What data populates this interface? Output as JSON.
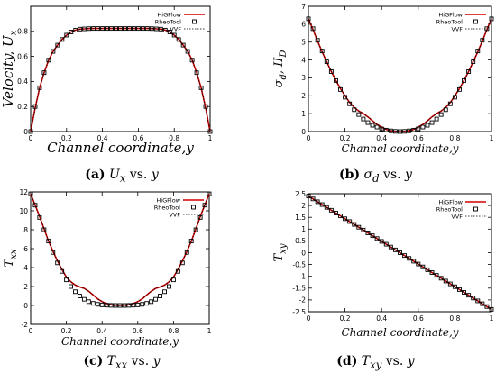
{
  "legend_entries": [
    "HiGFlow",
    "RheoTool",
    "VVF"
  ],
  "colors": {
    "higflow": "#d40000",
    "rheotool_marker": "#000000",
    "vvf": "#000000",
    "axis": "#000000"
  },
  "chart_data": [
    {
      "id": "a",
      "type": "line",
      "caption": {
        "letter": "(a)",
        "math": "U",
        "sub": "x",
        "suffix": " vs. ",
        "var": "y"
      },
      "xlabel": "Channel coordinate,y",
      "ylabel_main": "Velocity, U",
      "ylabel_sub": "x",
      "xlim": [
        0,
        1
      ],
      "ylim": [
        0,
        1.0
      ],
      "xticks": [
        0,
        0.2,
        0.4,
        0.6,
        0.8,
        1
      ],
      "xtick_labels": [
        "0",
        "0.2",
        "0.4",
        "0.6",
        "0.8",
        "1"
      ],
      "yticks": [
        0,
        0.2,
        0.4,
        0.6,
        0.8
      ],
      "ytick_labels": [
        "0",
        "0.2",
        "0.4",
        "0.6",
        "0.8"
      ],
      "legend_position": "top-right",
      "series": [
        {
          "name": "HiGFlow",
          "style": "line",
          "x": [
            0,
            0.025,
            0.05,
            0.075,
            0.1,
            0.125,
            0.15,
            0.175,
            0.2,
            0.225,
            0.25,
            0.275,
            0.3,
            0.325,
            0.35,
            0.4,
            0.5,
            0.6,
            0.65,
            0.675,
            0.7,
            0.725,
            0.75,
            0.775,
            0.8,
            0.825,
            0.85,
            0.875,
            0.9,
            0.925,
            0.95,
            0.975,
            1
          ],
          "y": [
            0,
            0.19,
            0.35,
            0.47,
            0.57,
            0.64,
            0.69,
            0.735,
            0.77,
            0.795,
            0.81,
            0.818,
            0.82,
            0.822,
            0.823,
            0.823,
            0.823,
            0.823,
            0.823,
            0.822,
            0.82,
            0.818,
            0.81,
            0.795,
            0.77,
            0.735,
            0.69,
            0.64,
            0.57,
            0.47,
            0.35,
            0.19,
            0
          ]
        },
        {
          "name": "RheoTool",
          "style": "markers",
          "x": [
            0,
            0.025,
            0.05,
            0.075,
            0.1,
            0.125,
            0.15,
            0.175,
            0.2,
            0.225,
            0.25,
            0.275,
            0.3,
            0.325,
            0.35,
            0.375,
            0.4,
            0.425,
            0.45,
            0.475,
            0.5,
            0.525,
            0.55,
            0.575,
            0.6,
            0.625,
            0.65,
            0.675,
            0.7,
            0.725,
            0.75,
            0.775,
            0.8,
            0.825,
            0.85,
            0.875,
            0.9,
            0.925,
            0.95,
            0.975,
            1
          ],
          "y": [
            0,
            0.2,
            0.35,
            0.47,
            0.57,
            0.64,
            0.69,
            0.735,
            0.77,
            0.795,
            0.81,
            0.818,
            0.82,
            0.822,
            0.823,
            0.823,
            0.823,
            0.823,
            0.823,
            0.823,
            0.823,
            0.823,
            0.823,
            0.823,
            0.823,
            0.823,
            0.823,
            0.822,
            0.82,
            0.818,
            0.81,
            0.795,
            0.77,
            0.735,
            0.69,
            0.64,
            0.57,
            0.47,
            0.35,
            0.2,
            0
          ]
        },
        {
          "name": "VVF",
          "style": "dotted",
          "x": [
            0,
            0.025,
            0.05,
            0.075,
            0.1,
            0.125,
            0.15,
            0.175,
            0.2,
            0.225,
            0.25,
            0.275,
            0.3,
            0.325,
            0.35,
            0.4,
            0.5,
            0.6,
            0.65,
            0.675,
            0.7,
            0.725,
            0.75,
            0.775,
            0.8,
            0.825,
            0.85,
            0.875,
            0.9,
            0.925,
            0.95,
            0.975,
            1
          ],
          "y": [
            0,
            0.19,
            0.35,
            0.47,
            0.57,
            0.64,
            0.69,
            0.735,
            0.77,
            0.795,
            0.81,
            0.818,
            0.82,
            0.822,
            0.823,
            0.823,
            0.823,
            0.823,
            0.823,
            0.822,
            0.82,
            0.818,
            0.81,
            0.795,
            0.77,
            0.735,
            0.69,
            0.64,
            0.57,
            0.47,
            0.35,
            0.19,
            0
          ]
        }
      ]
    },
    {
      "id": "b",
      "type": "line",
      "caption": {
        "letter": "(b)",
        "math": "σ",
        "sub": "d",
        "suffix": " vs. ",
        "var": "y"
      },
      "xlabel": "Channel coordinate,y",
      "ylabel_main": "σ",
      "ylabel_sub": "d",
      "ylabel_rest": ", II",
      "ylabel_rest_sub": "D",
      "xlim": [
        0,
        1
      ],
      "ylim": [
        0,
        7
      ],
      "xticks": [
        0,
        0.2,
        0.4,
        0.6,
        0.8,
        1
      ],
      "xtick_labels": [
        "0",
        "0.2",
        "0.4",
        "0.6",
        "0.8",
        "1"
      ],
      "yticks": [
        0,
        1,
        2,
        3,
        4,
        5,
        6,
        7
      ],
      "ytick_labels": [
        "0",
        "1",
        "2",
        "3",
        "4",
        "5",
        "6",
        "7"
      ],
      "legend_position": "top-right",
      "series": [
        {
          "name": "HiGFlow",
          "style": "line",
          "x": [
            0,
            0.025,
            0.05,
            0.075,
            0.1,
            0.125,
            0.15,
            0.175,
            0.2,
            0.225,
            0.25,
            0.275,
            0.3,
            0.325,
            0.35,
            0.375,
            0.4,
            0.425,
            0.45,
            0.475,
            0.5,
            0.525,
            0.55,
            0.575,
            0.6,
            0.625,
            0.65,
            0.675,
            0.7,
            0.725,
            0.75,
            0.775,
            0.8,
            0.825,
            0.85,
            0.875,
            0.9,
            0.925,
            0.95,
            0.975,
            1
          ],
          "y": [
            6.3,
            5.7,
            5.05,
            4.45,
            3.9,
            3.35,
            2.85,
            2.4,
            2.0,
            1.62,
            1.35,
            1.15,
            1.0,
            0.82,
            0.6,
            0.4,
            0.25,
            0.12,
            0.05,
            0.01,
            0.0,
            0.01,
            0.05,
            0.12,
            0.25,
            0.4,
            0.6,
            0.82,
            1.0,
            1.15,
            1.35,
            1.62,
            2.0,
            2.4,
            2.85,
            3.35,
            3.9,
            4.45,
            5.05,
            5.7,
            6.3
          ]
        },
        {
          "name": "RheoTool",
          "style": "markers",
          "x": [
            0,
            0.025,
            0.05,
            0.075,
            0.1,
            0.125,
            0.15,
            0.175,
            0.2,
            0.225,
            0.25,
            0.275,
            0.3,
            0.325,
            0.35,
            0.375,
            0.4,
            0.425,
            0.45,
            0.475,
            0.5,
            0.525,
            0.55,
            0.575,
            0.6,
            0.625,
            0.65,
            0.675,
            0.7,
            0.725,
            0.75,
            0.775,
            0.8,
            0.825,
            0.85,
            0.875,
            0.9,
            0.925,
            0.95,
            0.975,
            1
          ],
          "y": [
            6.3,
            5.75,
            5.1,
            4.5,
            3.9,
            3.35,
            2.85,
            2.35,
            1.92,
            1.55,
            1.22,
            0.95,
            0.7,
            0.5,
            0.35,
            0.25,
            0.15,
            0.08,
            0.04,
            0.01,
            0.0,
            0.01,
            0.04,
            0.08,
            0.15,
            0.25,
            0.35,
            0.5,
            0.7,
            0.95,
            1.22,
            1.55,
            1.92,
            2.35,
            2.85,
            3.35,
            3.9,
            4.5,
            5.1,
            5.75,
            6.3
          ]
        },
        {
          "name": "VVF",
          "style": "dotted",
          "x": [
            0,
            0.025,
            0.05,
            0.075,
            0.1,
            0.125,
            0.15,
            0.175,
            0.2,
            0.225,
            0.25,
            0.275,
            0.3,
            0.325,
            0.35,
            0.375,
            0.4,
            0.425,
            0.45,
            0.475,
            0.5,
            0.525,
            0.55,
            0.575,
            0.6,
            0.625,
            0.65,
            0.675,
            0.7,
            0.725,
            0.75,
            0.775,
            0.8,
            0.825,
            0.85,
            0.875,
            0.9,
            0.925,
            0.95,
            0.975,
            1
          ],
          "y": [
            6.3,
            5.7,
            5.05,
            4.45,
            3.9,
            3.35,
            2.85,
            2.4,
            2.0,
            1.62,
            1.35,
            1.15,
            1.0,
            0.82,
            0.6,
            0.4,
            0.25,
            0.12,
            0.05,
            0.01,
            0.0,
            0.01,
            0.05,
            0.12,
            0.25,
            0.4,
            0.6,
            0.82,
            1.0,
            1.15,
            1.35,
            1.62,
            2.0,
            2.4,
            2.85,
            3.35,
            3.9,
            4.45,
            5.05,
            5.7,
            6.3
          ]
        }
      ]
    },
    {
      "id": "c",
      "type": "line",
      "caption": {
        "letter": "(c)",
        "math": "T",
        "sub": "xx",
        "suffix": " vs. ",
        "var": "y"
      },
      "xlabel": "Channel coordinate,y",
      "ylabel_main": "T",
      "ylabel_sub": "xx",
      "xlim": [
        0,
        1
      ],
      "ylim": [
        -2,
        12
      ],
      "xticks": [
        0,
        0.2,
        0.4,
        0.6,
        0.8,
        1
      ],
      "xtick_labels": [
        "0",
        "0.2",
        "0.4",
        "0.6",
        "0.8",
        "1"
      ],
      "yticks": [
        -2,
        0,
        2,
        4,
        6,
        8,
        10,
        12
      ],
      "ytick_labels": [
        "-2",
        "0",
        "2",
        "4",
        "6",
        "8",
        "10",
        "12"
      ],
      "legend_position": "top-right",
      "series": [
        {
          "name": "HiGFlow",
          "style": "line",
          "x": [
            0,
            0.025,
            0.05,
            0.075,
            0.1,
            0.125,
            0.15,
            0.175,
            0.2,
            0.225,
            0.25,
            0.275,
            0.3,
            0.325,
            0.35,
            0.375,
            0.4,
            0.425,
            0.45,
            0.475,
            0.5,
            0.525,
            0.55,
            0.575,
            0.6,
            0.625,
            0.65,
            0.675,
            0.7,
            0.725,
            0.75,
            0.775,
            0.8,
            0.825,
            0.85,
            0.875,
            0.9,
            0.925,
            0.95,
            0.975,
            1
          ],
          "y": [
            11.8,
            10.6,
            9.4,
            8.1,
            6.8,
            5.7,
            4.7,
            3.8,
            3.0,
            2.5,
            2.15,
            1.95,
            1.8,
            1.5,
            1.1,
            0.7,
            0.4,
            0.2,
            0.08,
            0.02,
            0.0,
            0.02,
            0.08,
            0.2,
            0.4,
            0.7,
            1.1,
            1.5,
            1.8,
            1.95,
            2.15,
            2.5,
            3.0,
            3.8,
            4.7,
            5.7,
            6.8,
            8.1,
            9.4,
            10.6,
            11.8
          ]
        },
        {
          "name": "RheoTool",
          "style": "markers",
          "x": [
            0,
            0.025,
            0.05,
            0.075,
            0.1,
            0.125,
            0.15,
            0.175,
            0.2,
            0.225,
            0.25,
            0.275,
            0.3,
            0.325,
            0.35,
            0.375,
            0.4,
            0.425,
            0.45,
            0.475,
            0.5,
            0.525,
            0.55,
            0.575,
            0.6,
            0.625,
            0.65,
            0.675,
            0.7,
            0.725,
            0.75,
            0.775,
            0.8,
            0.825,
            0.85,
            0.875,
            0.9,
            0.925,
            0.95,
            0.975,
            1
          ],
          "y": [
            11.8,
            10.6,
            9.3,
            8.0,
            6.8,
            5.6,
            4.5,
            3.6,
            2.7,
            2.0,
            1.45,
            1.0,
            0.65,
            0.4,
            0.22,
            0.12,
            0.06,
            0.03,
            0.01,
            0.0,
            0.0,
            0.0,
            0.01,
            0.03,
            0.06,
            0.12,
            0.22,
            0.4,
            0.65,
            1.0,
            1.45,
            2.0,
            2.7,
            3.6,
            4.5,
            5.6,
            6.8,
            8.0,
            9.3,
            10.6,
            11.8
          ]
        },
        {
          "name": "VVF",
          "style": "dotted",
          "x": [
            0,
            0.025,
            0.05,
            0.075,
            0.1,
            0.125,
            0.15,
            0.175,
            0.2,
            0.225,
            0.25,
            0.275,
            0.3,
            0.325,
            0.35,
            0.375,
            0.4,
            0.425,
            0.45,
            0.475,
            0.5,
            0.525,
            0.55,
            0.575,
            0.6,
            0.625,
            0.65,
            0.675,
            0.7,
            0.725,
            0.75,
            0.775,
            0.8,
            0.825,
            0.85,
            0.875,
            0.9,
            0.925,
            0.95,
            0.975,
            1
          ],
          "y": [
            11.8,
            10.6,
            9.4,
            8.1,
            6.8,
            5.7,
            4.7,
            3.8,
            3.0,
            2.5,
            2.15,
            1.95,
            1.8,
            1.5,
            1.1,
            0.7,
            0.4,
            0.2,
            0.08,
            0.02,
            0.0,
            0.02,
            0.08,
            0.2,
            0.4,
            0.7,
            1.1,
            1.5,
            1.8,
            1.95,
            2.15,
            2.5,
            3.0,
            3.8,
            4.7,
            5.7,
            6.8,
            8.1,
            9.4,
            10.6,
            11.8
          ]
        }
      ]
    },
    {
      "id": "d",
      "type": "line",
      "caption": {
        "letter": "(d)",
        "math": "T",
        "sub": "xy",
        "suffix": " vs. ",
        "var": "y"
      },
      "xlabel": "Channel coordinate,y",
      "ylabel_main": "T",
      "ylabel_sub": "xy",
      "xlim": [
        0,
        1
      ],
      "ylim": [
        -2.5,
        2.5
      ],
      "xticks": [
        0,
        0.2,
        0.4,
        0.6,
        0.8,
        1
      ],
      "xtick_labels": [
        "0",
        "0.2",
        "0.4",
        "0.6",
        "0.8",
        "1"
      ],
      "yticks": [
        -2.5,
        -2,
        -1.5,
        -1,
        -0.5,
        0,
        0.5,
        1,
        1.5,
        2,
        2.5
      ],
      "ytick_labels": [
        "-2.5",
        "-2",
        "-1.5",
        "-1",
        "-0.5",
        "0",
        "0.5",
        "1",
        "1.5",
        "2",
        "2.5"
      ],
      "legend_position": "top-right",
      "series": [
        {
          "name": "HiGFlow",
          "style": "line",
          "x": [
            0,
            1
          ],
          "y": [
            2.4,
            -2.4
          ]
        },
        {
          "name": "RheoTool",
          "style": "markers",
          "x": [
            0,
            0.025,
            0.05,
            0.075,
            0.1,
            0.125,
            0.15,
            0.175,
            0.2,
            0.225,
            0.25,
            0.275,
            0.3,
            0.325,
            0.35,
            0.375,
            0.4,
            0.425,
            0.45,
            0.475,
            0.5,
            0.525,
            0.55,
            0.575,
            0.6,
            0.625,
            0.65,
            0.675,
            0.7,
            0.725,
            0.75,
            0.775,
            0.8,
            0.825,
            0.85,
            0.875,
            0.9,
            0.925,
            0.95,
            0.975,
            1
          ],
          "y": [
            2.4,
            2.28,
            2.16,
            2.04,
            1.92,
            1.8,
            1.68,
            1.56,
            1.44,
            1.32,
            1.2,
            1.08,
            0.96,
            0.84,
            0.72,
            0.6,
            0.48,
            0.36,
            0.24,
            0.12,
            0,
            -0.12,
            -0.24,
            -0.36,
            -0.48,
            -0.6,
            -0.72,
            -0.84,
            -0.96,
            -1.08,
            -1.2,
            -1.32,
            -1.44,
            -1.56,
            -1.68,
            -1.8,
            -1.92,
            -2.04,
            -2.16,
            -2.28,
            -2.4
          ]
        },
        {
          "name": "VVF",
          "style": "dotted",
          "x": [
            0,
            1
          ],
          "y": [
            2.4,
            -2.4
          ]
        }
      ]
    }
  ]
}
